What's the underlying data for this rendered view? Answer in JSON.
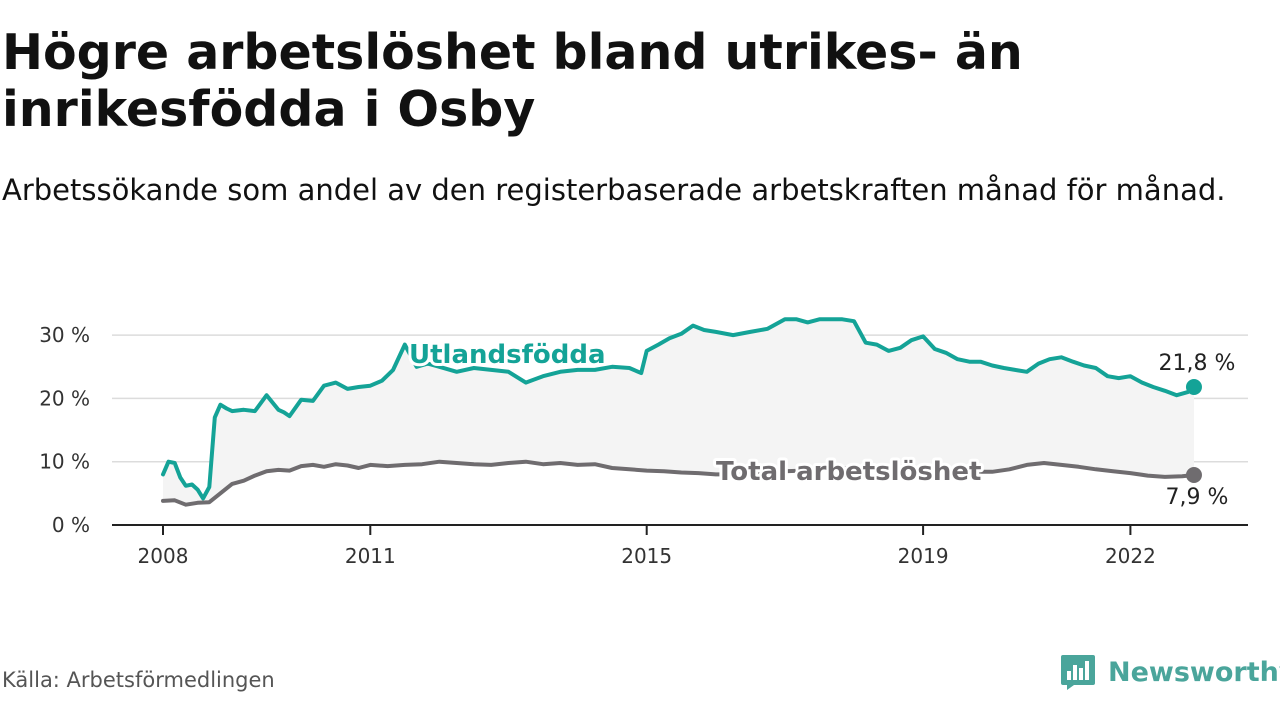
{
  "title": "Högre arbetslöshet bland utrikes- än inrikesfödda i Osby",
  "subtitle": "Arbetssökande som andel av den registerbaserade arbetskraften månad för månad.",
  "source": "Källa: Arbetsförmedlingen",
  "brand": {
    "name": "Newsworthy",
    "icon": "newsworthy-logo-icon"
  },
  "colors": {
    "utlandsfodda": "#14a397",
    "total": "#6f6c6f",
    "band": "#f4f4f4",
    "grid": "#dcdcdc",
    "axis": "#222222"
  },
  "chart_data": {
    "type": "line",
    "title": "Högre arbetslöshet bland utrikes- än inrikesfödda i Osby",
    "xlabel": "",
    "ylabel": "",
    "ylim": [
      0,
      33
    ],
    "xlim": [
      2008.0,
      2023.0
    ],
    "yticks": [
      0,
      10,
      20,
      30
    ],
    "ytick_labels": [
      "0 %",
      "10 %",
      "20 %",
      "30 %"
    ],
    "xticks": [
      2008,
      2011,
      2015,
      2019,
      2022
    ],
    "xtick_labels": [
      "2008",
      "2011",
      "2015",
      "2019",
      "2022"
    ],
    "series": [
      {
        "name": "Utlandsfödda",
        "label": "Utlandsfödda",
        "end_label": "21,8 %",
        "x": [
          2008.0,
          2008.08,
          2008.17,
          2008.25,
          2008.33,
          2008.42,
          2008.5,
          2008.58,
          2008.67,
          2008.75,
          2008.83,
          2008.92,
          2009.0,
          2009.17,
          2009.33,
          2009.5,
          2009.67,
          2009.75,
          2009.83,
          2010.0,
          2010.17,
          2010.33,
          2010.5,
          2010.67,
          2010.83,
          2011.0,
          2011.17,
          2011.33,
          2011.5,
          2011.67,
          2011.83,
          2012.0,
          2012.25,
          2012.5,
          2012.75,
          2013.0,
          2013.25,
          2013.5,
          2013.75,
          2014.0,
          2014.25,
          2014.5,
          2014.75,
          2014.92,
          2015.0,
          2015.17,
          2015.33,
          2015.5,
          2015.67,
          2015.83,
          2016.0,
          2016.25,
          2016.5,
          2016.75,
          2017.0,
          2017.17,
          2017.33,
          2017.5,
          2017.67,
          2017.83,
          2018.0,
          2018.17,
          2018.33,
          2018.5,
          2018.67,
          2018.83,
          2019.0,
          2019.17,
          2019.33,
          2019.5,
          2019.67,
          2019.83,
          2020.0,
          2020.17,
          2020.33,
          2020.5,
          2020.67,
          2020.83,
          2021.0,
          2021.17,
          2021.33,
          2021.5,
          2021.67,
          2021.83,
          2022.0,
          2022.17,
          2022.33,
          2022.5,
          2022.67,
          2022.83,
          2022.92
        ],
        "values": [
          8,
          10,
          9.8,
          7.5,
          6.2,
          6.4,
          5.6,
          4.2,
          6.0,
          17,
          19,
          18.4,
          18,
          18.2,
          18,
          20.5,
          18.2,
          17.8,
          17.2,
          19.8,
          19.6,
          22,
          22.5,
          21.5,
          21.8,
          22,
          22.8,
          24.5,
          28.5,
          25,
          25.5,
          25,
          24.2,
          24.8,
          24.5,
          24.2,
          22.5,
          23.5,
          24.2,
          24.5,
          24.5,
          25,
          24.8,
          24.0,
          27.5,
          28.5,
          29.5,
          30.2,
          31.5,
          30.8,
          30.5,
          30,
          30.5,
          31,
          32.5,
          32.5,
          32,
          32.5,
          32.5,
          32.5,
          32.2,
          28.8,
          28.5,
          27.5,
          28,
          29.2,
          29.8,
          27.8,
          27.2,
          26.2,
          25.8,
          25.8,
          25.2,
          24.8,
          24.5,
          24.2,
          25.5,
          26.2,
          26.5,
          25.8,
          25.2,
          24.8,
          23.5,
          23.2,
          23.5,
          22.5,
          21.8,
          21.2,
          20.5,
          21.0,
          21.8
        ]
      },
      {
        "name": "Total arbetslöshet",
        "label": "Total arbetslöshet",
        "end_label": "7,9 %",
        "x": [
          2008.0,
          2008.17,
          2008.33,
          2008.5,
          2008.67,
          2008.83,
          2009.0,
          2009.17,
          2009.33,
          2009.5,
          2009.67,
          2009.83,
          2010.0,
          2010.17,
          2010.33,
          2010.5,
          2010.67,
          2010.83,
          2011.0,
          2011.25,
          2011.5,
          2011.75,
          2012.0,
          2012.25,
          2012.5,
          2012.75,
          2013.0,
          2013.25,
          2013.5,
          2013.75,
          2014.0,
          2014.25,
          2014.5,
          2014.75,
          2015.0,
          2015.25,
          2015.5,
          2015.75,
          2016.0,
          2016.25,
          2016.5,
          2016.75,
          2017.0,
          2017.25,
          2017.5,
          2017.75,
          2018.0,
          2018.25,
          2018.5,
          2018.75,
          2019.0,
          2019.25,
          2019.5,
          2019.75,
          2020.0,
          2020.25,
          2020.5,
          2020.75,
          2021.0,
          2021.25,
          2021.5,
          2021.75,
          2022.0,
          2022.25,
          2022.5,
          2022.75,
          2022.92
        ],
        "values": [
          3.8,
          3.9,
          3.2,
          3.5,
          3.6,
          5.0,
          6.5,
          7.0,
          7.8,
          8.5,
          8.7,
          8.6,
          9.3,
          9.5,
          9.2,
          9.6,
          9.4,
          9.0,
          9.5,
          9.3,
          9.5,
          9.6,
          10.0,
          9.8,
          9.6,
          9.5,
          9.8,
          10.0,
          9.6,
          9.8,
          9.5,
          9.6,
          9.0,
          8.8,
          8.6,
          8.5,
          8.3,
          8.2,
          8.0,
          8.0,
          8.3,
          8.4,
          8.5,
          8.6,
          8.8,
          9.0,
          9.0,
          9.2,
          9.0,
          8.8,
          8.8,
          8.6,
          8.5,
          8.4,
          8.4,
          8.8,
          9.5,
          9.8,
          9.5,
          9.2,
          8.8,
          8.5,
          8.2,
          7.8,
          7.6,
          7.7,
          7.9
        ]
      }
    ]
  }
}
